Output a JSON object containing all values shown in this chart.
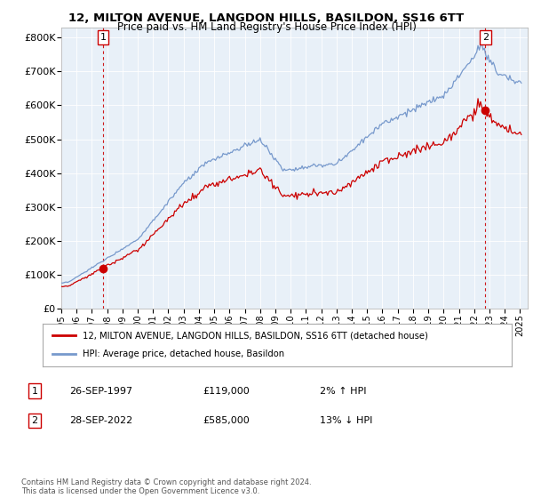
{
  "title": "12, MILTON AVENUE, LANGDON HILLS, BASILDON, SS16 6TT",
  "subtitle": "Price paid vs. HM Land Registry's House Price Index (HPI)",
  "ylim": [
    0,
    800000
  ],
  "yticks": [
    0,
    100000,
    200000,
    300000,
    400000,
    500000,
    600000,
    700000,
    800000
  ],
  "ytick_labels": [
    "£0",
    "£100K",
    "£200K",
    "£300K",
    "£400K",
    "£500K",
    "£600K",
    "£700K",
    "£800K"
  ],
  "sale1_date": 1997.73,
  "sale1_price": 119000,
  "sale2_date": 2022.73,
  "sale2_price": 585000,
  "legend_line1": "12, MILTON AVENUE, LANGDON HILLS, BASILDON, SS16 6TT (detached house)",
  "legend_line2": "HPI: Average price, detached house, Basildon",
  "note1_num": "1",
  "note1_date": "26-SEP-1997",
  "note1_price": "£119,000",
  "note1_hpi": "2% ↑ HPI",
  "note2_num": "2",
  "note2_date": "28-SEP-2022",
  "note2_price": "£585,000",
  "note2_hpi": "13% ↓ HPI",
  "footer": "Contains HM Land Registry data © Crown copyright and database right 2024.\nThis data is licensed under the Open Government Licence v3.0.",
  "line_color_sale": "#cc0000",
  "line_color_hpi": "#7799cc",
  "background_color": "#ffffff",
  "plot_bg_color": "#e8f0f8",
  "grid_color": "#ffffff"
}
